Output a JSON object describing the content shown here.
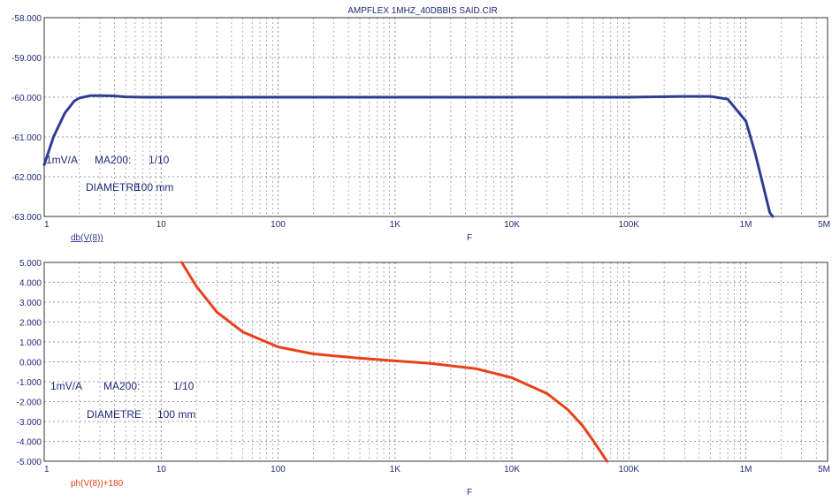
{
  "title": "AMPFLEX 1MHZ_40DBBIS SAID.CIR",
  "colors": {
    "axis_text": "#1f2a7a",
    "grid": "#7a7a7a",
    "frame": "#333333"
  },
  "chart_data": [
    {
      "type": "line",
      "xscale": "log",
      "xlim": [
        1,
        5000000
      ],
      "ylim": [
        -63,
        -58
      ],
      "x_ticks": [
        1,
        10,
        100,
        1000,
        10000,
        100000,
        1000000,
        5000000
      ],
      "x_tick_labels": [
        "1",
        "10",
        "100",
        "1K",
        "10K",
        "100K",
        "1M",
        "5M"
      ],
      "y_ticks": [
        -63,
        -62,
        -61,
        -60,
        -59,
        -58
      ],
      "y_tick_labels": [
        "-63.000",
        "-62.000",
        "-61.000",
        "-60.000",
        "-59.000",
        "-58.000"
      ],
      "xlabel": "F",
      "ylabel": "",
      "grid": true,
      "series": [
        {
          "name": "db(V(8))",
          "color": "#2e3d94",
          "x": [
            1,
            1.2,
            1.5,
            1.8,
            2,
            2.5,
            3,
            4,
            5,
            7,
            10,
            100,
            1000,
            10000,
            100000,
            300000,
            500000,
            700000,
            1000000,
            1200000,
            1400000,
            1600000,
            1700000
          ],
          "y": [
            -61.7,
            -61.0,
            -60.4,
            -60.1,
            -60.02,
            -59.96,
            -59.96,
            -59.97,
            -59.99,
            -60.0,
            -60.0,
            -60.0,
            -60.0,
            -60.0,
            -60.0,
            -59.98,
            -59.98,
            -60.05,
            -60.6,
            -61.4,
            -62.2,
            -62.9,
            -63.0
          ]
        }
      ],
      "annotations": [
        "1mV/A",
        "MA200:",
        "1/10",
        "DIAMETRE",
        "100 mm"
      ]
    },
    {
      "type": "line",
      "xscale": "log",
      "xlim": [
        1,
        5000000
      ],
      "ylim": [
        -5,
        5
      ],
      "x_ticks": [
        1,
        10,
        100,
        1000,
        10000,
        100000,
        1000000,
        5000000
      ],
      "x_tick_labels": [
        "1",
        "10",
        "100",
        "1K",
        "10K",
        "100K",
        "1M",
        "5M"
      ],
      "y_ticks": [
        -5,
        -4,
        -3,
        -2,
        -1,
        0,
        1,
        2,
        3,
        4,
        5
      ],
      "y_tick_labels": [
        "-5.000",
        "-4.000",
        "-3.000",
        "-2.000",
        "-1.000",
        "0.000",
        "1.000",
        "2.000",
        "3.000",
        "4.000",
        "5.000"
      ],
      "xlabel": "F",
      "ylabel": "",
      "grid": true,
      "series": [
        {
          "name": "ph(V(8))+180",
          "color": "#e8401a",
          "x": [
            15,
            20,
            30,
            50,
            100,
            200,
            500,
            1000,
            2000,
            5000,
            10000,
            20000,
            30000,
            40000,
            50000,
            60000,
            65000
          ],
          "y": [
            5.0,
            3.8,
            2.5,
            1.5,
            0.75,
            0.4,
            0.18,
            0.05,
            -0.08,
            -0.35,
            -0.8,
            -1.6,
            -2.4,
            -3.2,
            -4.0,
            -4.7,
            -5.0
          ]
        }
      ],
      "annotations": [
        "1mV/A",
        "MA200:",
        "1/10",
        "DIAMETRE",
        "100 mm"
      ]
    }
  ]
}
